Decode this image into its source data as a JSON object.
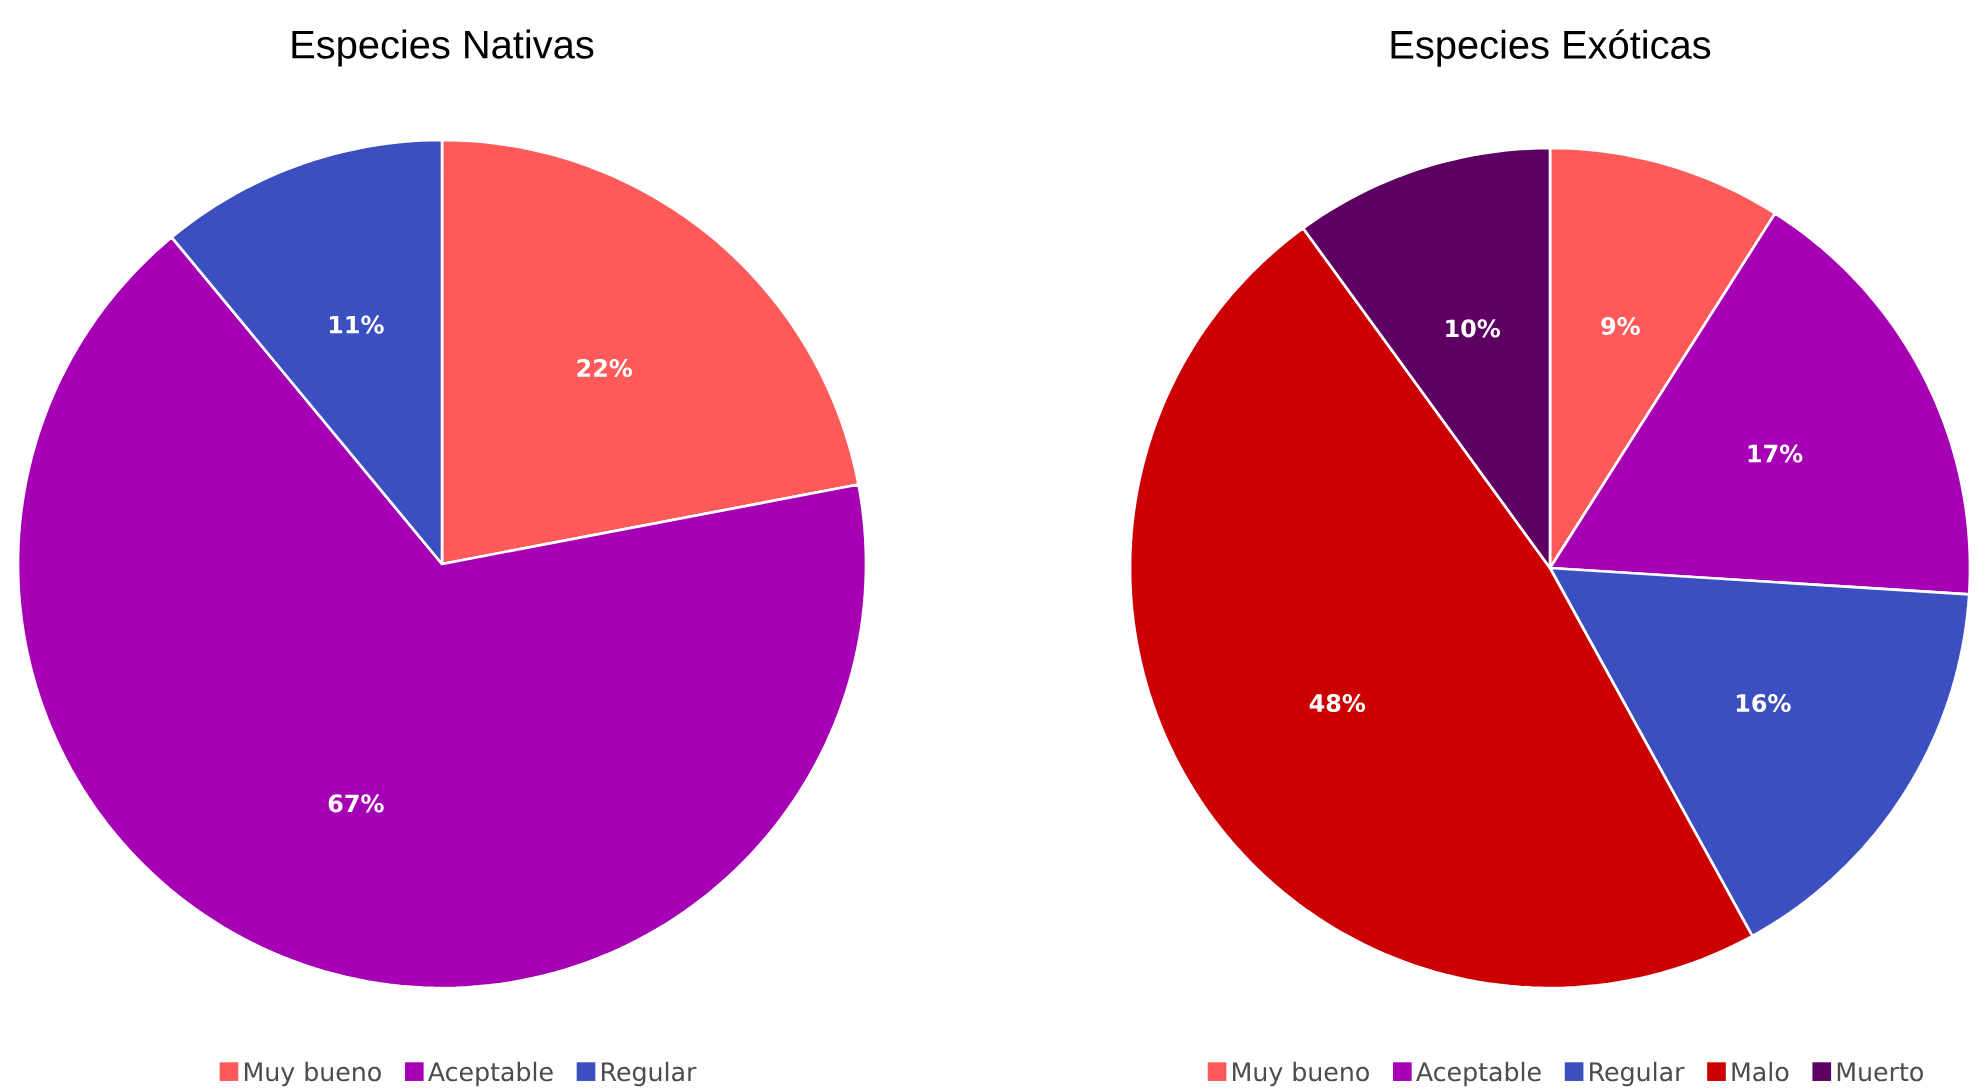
{
  "chart_data": [
    {
      "type": "pie",
      "title": "Especies Nativas",
      "categories": [
        "Muy bueno",
        "Aceptable",
        "Regular"
      ],
      "values": [
        22,
        67,
        11
      ],
      "colors": [
        "#ff5a5a",
        "#a600b4",
        "#3b4fc1"
      ],
      "value_labels": [
        "22%",
        "67%",
        "11%"
      ],
      "legend": "bottom"
    },
    {
      "type": "pie",
      "title": "Especies Exóticas",
      "categories": [
        "Muy bueno",
        "Aceptable",
        "Regular",
        "Malo",
        "Muerto"
      ],
      "values": [
        9,
        17,
        16,
        48,
        10
      ],
      "colors": [
        "#ff5a5a",
        "#a600b4",
        "#3b4fc1",
        "#cc0000",
        "#5e0063"
      ],
      "value_labels": [
        "9%",
        "17%",
        "16%",
        "48%",
        "10%"
      ],
      "legend": "bottom"
    }
  ]
}
